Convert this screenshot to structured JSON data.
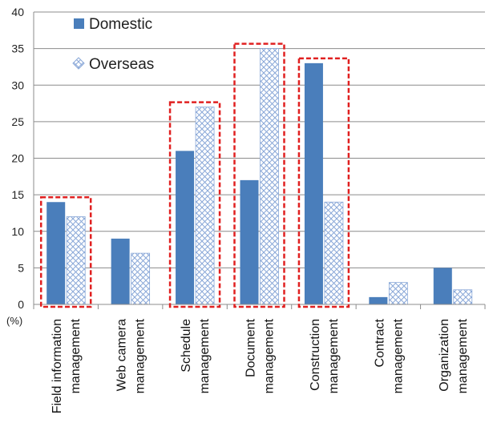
{
  "chart_data": {
    "type": "bar",
    "categories": [
      [
        "Field information",
        "management"
      ],
      [
        "Web camera",
        "management"
      ],
      [
        "Schedule",
        "management"
      ],
      [
        "Document",
        "management"
      ],
      [
        "Construction",
        "management"
      ],
      [
        "Contract",
        "management"
      ],
      [
        "Organization",
        "management"
      ]
    ],
    "series": [
      {
        "name": "Domestic",
        "values": [
          14,
          9,
          21,
          17,
          33,
          1,
          5
        ],
        "color": "#4a7ebb",
        "pattern": "solid"
      },
      {
        "name": "Overseas",
        "values": [
          12,
          7,
          27,
          35,
          14,
          3,
          2
        ],
        "color": "#8aa8d8",
        "pattern": "crosshatch"
      }
    ],
    "ylim": [
      0,
      40
    ],
    "yticks": [
      0,
      5,
      10,
      15,
      20,
      25,
      30,
      35,
      40
    ],
    "y_unit_label": "(%)",
    "grid": true,
    "legend_placement": "top-left",
    "highlight_boxes": {
      "color": "#e02020",
      "style": "dashed",
      "categories": [
        0,
        2,
        3,
        4
      ]
    }
  }
}
